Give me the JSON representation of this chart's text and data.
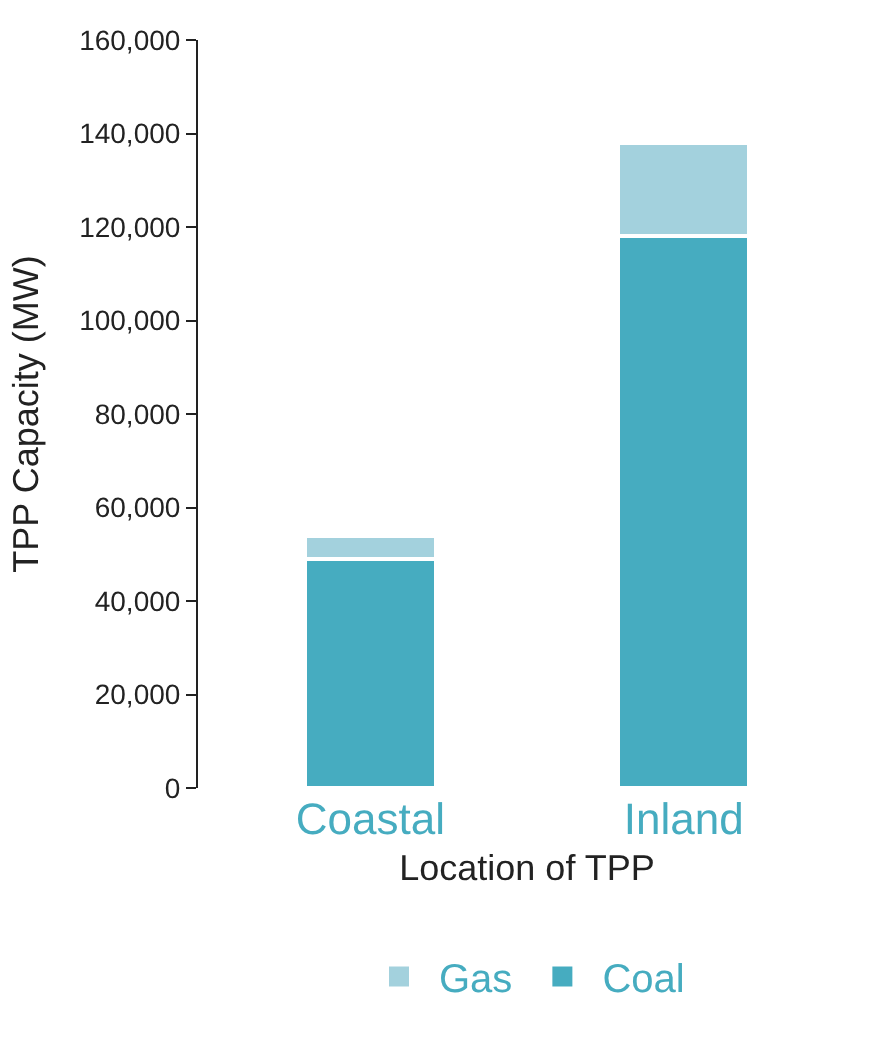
{
  "chart_data": {
    "type": "bar",
    "stacked": true,
    "categories": [
      "Coastal",
      "Inland"
    ],
    "xlabel": "Location of TPP",
    "ylabel": "TPP Capacity (MW)",
    "series": [
      {
        "name": "Coal",
        "color": "#46acc0",
        "values": [
          49000,
          118000
        ]
      },
      {
        "name": "Gas",
        "color": "#a3d1dd",
        "values": [
          5000,
          20000
        ]
      }
    ],
    "ylim": [
      0,
      160000
    ],
    "yticks": [
      {
        "value": 0,
        "label": "0"
      },
      {
        "value": 20000,
        "label": "20,000"
      },
      {
        "value": 40000,
        "label": "40,000"
      },
      {
        "value": 60000,
        "label": "60,000"
      },
      {
        "value": 80000,
        "label": "80,000"
      },
      {
        "value": 100000,
        "label": "100,000"
      },
      {
        "value": 120000,
        "label": "120,000"
      },
      {
        "value": 140000,
        "label": "140,000"
      },
      {
        "value": 160000,
        "label": "160,000"
      }
    ],
    "grid": false,
    "legend": "bottom"
  }
}
